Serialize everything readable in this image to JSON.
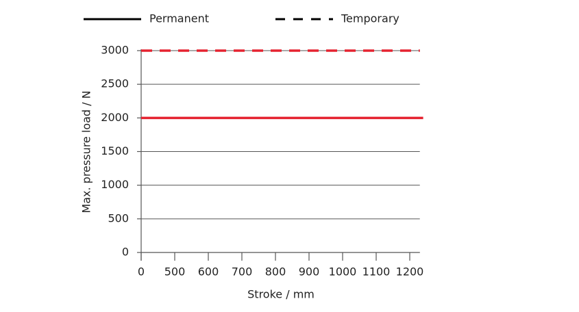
{
  "chart_data": {
    "type": "line",
    "xlabel": "Stroke / mm",
    "ylabel": "Max. pressure load / N",
    "xlim": [
      0,
      1230
    ],
    "xticks": [
      0,
      500,
      600,
      700,
      800,
      900,
      1000,
      1100,
      1200
    ],
    "ylim": [
      0,
      3000
    ],
    "yticks": [
      0,
      500,
      1000,
      1500,
      2000,
      2500,
      3000
    ],
    "grid": true,
    "legend": "top",
    "series": [
      {
        "name": "Permanent",
        "color": "#e52330",
        "dashed": false,
        "x": [
          0,
          1240
        ],
        "values": [
          2000,
          2000
        ]
      },
      {
        "name": "Temporary",
        "color": "#e52330",
        "dashed": true,
        "x": [
          0,
          1230
        ],
        "values": [
          3000,
          3000
        ]
      }
    ]
  }
}
